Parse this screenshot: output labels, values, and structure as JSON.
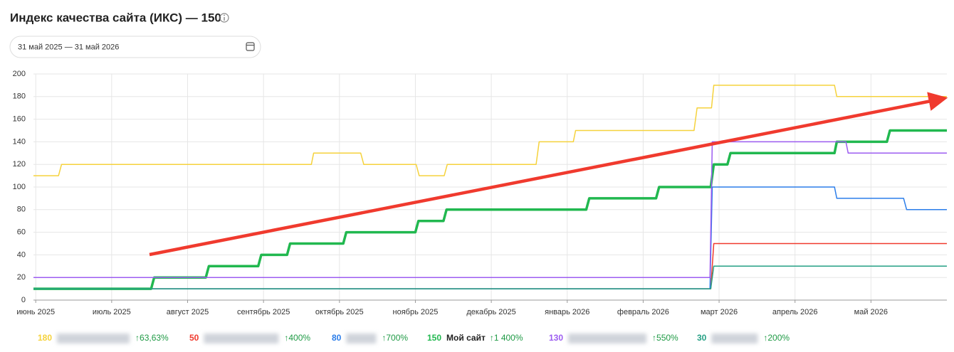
{
  "header": {
    "title": "Индекс качества сайта (ИКС) — 150",
    "date_range": "31 май 2025 — 31 май 2026"
  },
  "chart_data": {
    "type": "line",
    "xlim": [
      -0.03,
      12
    ],
    "ylim": [
      0,
      200
    ],
    "xticks": [
      {
        "value": 0,
        "label": "июнь 2025"
      },
      {
        "value": 1,
        "label": "июль 2025"
      },
      {
        "value": 2,
        "label": "август 2025"
      },
      {
        "value": 3,
        "label": "сентябрь 2025"
      },
      {
        "value": 4,
        "label": "октябрь 2025"
      },
      {
        "value": 5,
        "label": "ноябрь 2025"
      },
      {
        "value": 6,
        "label": "декабрь 2025"
      },
      {
        "value": 7,
        "label": "январь 2026"
      },
      {
        "value": 8,
        "label": "февраль 2026"
      },
      {
        "value": 9,
        "label": "март 2026"
      },
      {
        "value": 10,
        "label": "апрель 2026"
      },
      {
        "value": 11,
        "label": "май 2026"
      }
    ],
    "yticks": [
      0,
      20,
      40,
      60,
      80,
      100,
      120,
      140,
      160,
      180,
      200
    ],
    "grid": true,
    "series": [
      {
        "color": "#f5d23c",
        "current": 180,
        "change": "↑63,63%",
        "width": 1.5,
        "x": [
          -0.03,
          0.3,
          0.34,
          3.63,
          3.66,
          4.28,
          4.32,
          5.01,
          5.05,
          5.38,
          5.42,
          6.59,
          6.63,
          7.08,
          7.11,
          8.67,
          8.71,
          8.9,
          8.93,
          10.52,
          10.55,
          12.0
        ],
        "values": [
          110,
          110,
          120,
          120,
          130,
          130,
          120,
          120,
          110,
          110,
          120,
          120,
          140,
          140,
          150,
          150,
          170,
          170,
          190,
          190,
          180,
          180
        ]
      },
      {
        "color": "#f03a2e",
        "current": 50,
        "change": "↑400%",
        "width": 1.5,
        "x": [
          -0.03,
          8.89,
          8.93,
          12.0
        ],
        "values": [
          10,
          10,
          50,
          50
        ]
      },
      {
        "color": "#2b7de9",
        "current": 80,
        "change": "↑700%",
        "width": 1.5,
        "x": [
          -0.03,
          8.88,
          8.91,
          10.52,
          10.55,
          11.43,
          11.47,
          12.0
        ],
        "values": [
          10,
          10,
          100,
          100,
          90,
          90,
          80,
          80
        ]
      },
      {
        "name": "Мой сайт",
        "color": "#21b84f",
        "current": 150,
        "change": "↑1 400%",
        "width": 3.5,
        "x": [
          -0.03,
          1.52,
          1.56,
          2.24,
          2.28,
          2.93,
          2.97,
          3.31,
          3.35,
          4.05,
          4.09,
          5.0,
          5.04,
          5.37,
          5.41,
          7.25,
          7.29,
          8.17,
          8.21,
          8.89,
          8.93,
          9.11,
          9.15,
          10.52,
          10.55,
          11.21,
          11.25,
          12.0
        ],
        "values": [
          10,
          10,
          20,
          20,
          30,
          30,
          40,
          40,
          50,
          50,
          60,
          60,
          70,
          70,
          80,
          80,
          90,
          90,
          100,
          100,
          120,
          120,
          130,
          130,
          140,
          140,
          150,
          150
        ]
      },
      {
        "color": "#9c5cf0",
        "current": 130,
        "change": "↑550%",
        "width": 1.5,
        "x": [
          -0.03,
          8.88,
          8.91,
          10.67,
          10.7,
          12.0
        ],
        "values": [
          20,
          20,
          140,
          140,
          130,
          130
        ]
      },
      {
        "color": "#26a085",
        "current": 30,
        "change": "↑200%",
        "width": 1.5,
        "x": [
          -0.03,
          8.89,
          8.93,
          12.0
        ],
        "values": [
          10,
          10,
          30,
          30
        ]
      }
    ]
  }
}
